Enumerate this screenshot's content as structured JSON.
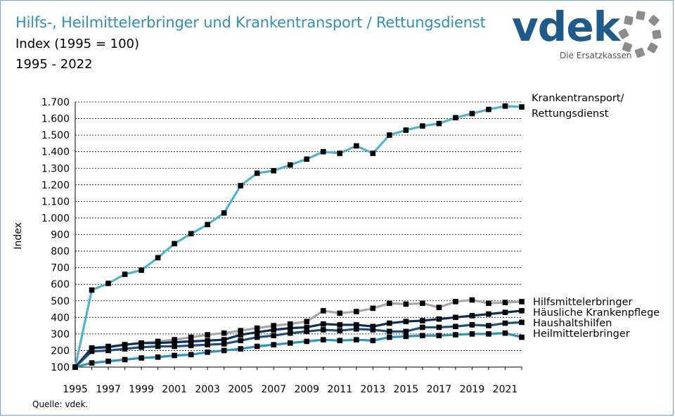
{
  "header": {
    "title": "Hilfs-, Heilmittelerbringer und Krankentransport / Rettungsdienst",
    "subtitle": "Index (1995 = 100)",
    "range": "1995 - 2022"
  },
  "logo": {
    "wordmark": "vdek",
    "tagline": "Die Ersatzkassen"
  },
  "source": "Quelle: vdek.",
  "colors": {
    "light_blue": "#4fb3cf",
    "grey": "#a6a6a6",
    "dark_navy": "#0d2d5a",
    "mid_navy": "#1b4f80",
    "teal": "#2a93bf"
  },
  "chart_data": {
    "type": "line",
    "title": "Hilfs-, Heilmittelerbringer und Krankentransport / Rettungsdienst",
    "ylabel": "Index",
    "xlabel": "",
    "ylim": [
      100,
      1700
    ],
    "yticks": [
      100,
      200,
      300,
      400,
      500,
      600,
      700,
      800,
      900,
      1000,
      1100,
      1200,
      1300,
      1400,
      1500,
      1600,
      1700
    ],
    "ytick_labels": [
      "100",
      "200",
      "300",
      "400",
      "500",
      "600",
      "700",
      "800",
      "900",
      "1.000",
      "1.100",
      "1.200",
      "1.300",
      "1.400",
      "1.500",
      "1.600",
      "1.700"
    ],
    "x": [
      1995,
      1996,
      1997,
      1998,
      1999,
      2000,
      2001,
      2002,
      2003,
      2004,
      2005,
      2006,
      2007,
      2008,
      2009,
      2010,
      2011,
      2012,
      2013,
      2014,
      2015,
      2016,
      2017,
      2018,
      2019,
      2020,
      2021,
      2022
    ],
    "xtick_labels": [
      "1995",
      "1997",
      "1999",
      "2001",
      "2003",
      "2005",
      "2007",
      "2009",
      "2011",
      "2013",
      "2015",
      "2017",
      "2019",
      "2021"
    ],
    "grid": true,
    "series": [
      {
        "name": "Krankentransport/ Rettungsdienst",
        "label_lines": [
          "Krankentransport/",
          "Rettungsdienst"
        ],
        "color": "#4fb3cf",
        "values": [
          100,
          565,
          605,
          660,
          685,
          760,
          845,
          905,
          960,
          1030,
          1195,
          1270,
          1285,
          1320,
          1355,
          1400,
          1390,
          1435,
          1390,
          1500,
          1530,
          1555,
          1570,
          1605,
          1630,
          1655,
          1675,
          1670
        ]
      },
      {
        "name": "Hilfsmittelerbringer",
        "label_lines": [
          "Hilfsmittelerbringer"
        ],
        "color": "#a6a6a6",
        "values": [
          100,
          215,
          225,
          235,
          245,
          255,
          265,
          280,
          295,
          305,
          320,
          335,
          350,
          360,
          375,
          440,
          425,
          435,
          455,
          485,
          480,
          485,
          460,
          495,
          505,
          485,
          490,
          495
        ]
      },
      {
        "name": "Häusliche Krankenpflege",
        "label_lines": [
          "Häusliche Krankenpflege"
        ],
        "color": "#0d2d5a",
        "values": [
          100,
          215,
          220,
          235,
          245,
          245,
          250,
          255,
          260,
          265,
          295,
          310,
          325,
          335,
          340,
          360,
          355,
          355,
          345,
          365,
          375,
          380,
          390,
          400,
          410,
          420,
          430,
          440
        ]
      },
      {
        "name": "Haushaltshilfen",
        "label_lines": [
          "Haushaltshilfen"
        ],
        "color": "#1b4f80",
        "values": [
          100,
          195,
          200,
          210,
          220,
          225,
          225,
          230,
          235,
          240,
          260,
          280,
          290,
          305,
          315,
          325,
          320,
          330,
          325,
          315,
          315,
          340,
          340,
          345,
          355,
          350,
          365,
          370
        ]
      },
      {
        "name": "Heilmittelerbringer",
        "label_lines": [
          "Heilmittelerbringer"
        ],
        "color": "#2a93bf",
        "values": [
          100,
          125,
          135,
          145,
          155,
          160,
          170,
          175,
          190,
          200,
          210,
          225,
          235,
          245,
          255,
          265,
          260,
          265,
          260,
          280,
          285,
          290,
          290,
          295,
          300,
          300,
          305,
          280
        ]
      }
    ]
  }
}
